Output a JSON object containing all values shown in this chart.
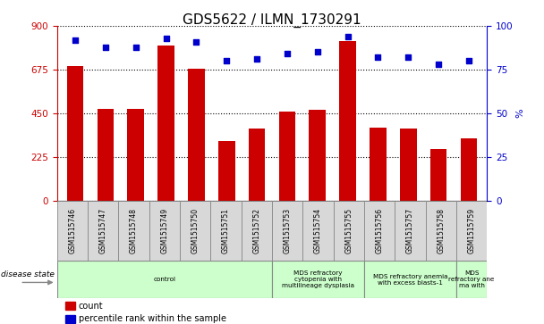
{
  "title": "GDS5622 / ILMN_1730291",
  "samples": [
    "GSM1515746",
    "GSM1515747",
    "GSM1515748",
    "GSM1515749",
    "GSM1515750",
    "GSM1515751",
    "GSM1515752",
    "GSM1515753",
    "GSM1515754",
    "GSM1515755",
    "GSM1515756",
    "GSM1515757",
    "GSM1515758",
    "GSM1515759"
  ],
  "counts": [
    695,
    475,
    475,
    800,
    680,
    310,
    370,
    460,
    470,
    820,
    375,
    370,
    265,
    320
  ],
  "percentiles": [
    92,
    88,
    88,
    93,
    91,
    80,
    81,
    84,
    85,
    94,
    82,
    82,
    78,
    80
  ],
  "ylim_left": [
    0,
    900
  ],
  "ylim_right": [
    0,
    100
  ],
  "yticks_left": [
    0,
    225,
    450,
    675,
    900
  ],
  "yticks_right": [
    0,
    25,
    50,
    75,
    100
  ],
  "bar_color": "#cc0000",
  "dot_color": "#0000cc",
  "title_fontsize": 11,
  "disease_groups": [
    {
      "label": "control",
      "start": 0,
      "end": 7,
      "color": "#ccffcc"
    },
    {
      "label": "MDS refractory\ncytopenia with\nmultilineage dysplasia",
      "start": 7,
      "end": 10,
      "color": "#ccffcc"
    },
    {
      "label": "MDS refractory anemia\nwith excess blasts-1",
      "start": 10,
      "end": 13,
      "color": "#ccffcc"
    },
    {
      "label": "MDS\nrefractory ane\nma with",
      "start": 13,
      "end": 14,
      "color": "#ccffcc"
    }
  ],
  "legend_count_label": "count",
  "legend_pct_label": "percentile rank within the sample",
  "disease_state_label": "disease state",
  "right_axis_label": "%"
}
